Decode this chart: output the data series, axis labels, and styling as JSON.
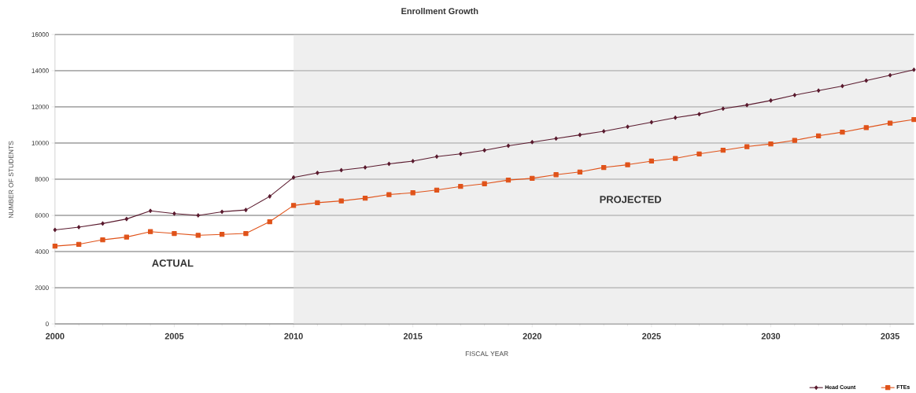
{
  "chart_data": {
    "type": "line",
    "title": "Enrollment Growth",
    "xlabel": "FISCAL YEAR",
    "ylabel": "NUMBER OF STUDENTS",
    "x": [
      2000,
      2001,
      2002,
      2003,
      2004,
      2005,
      2006,
      2007,
      2008,
      2009,
      2010,
      2011,
      2012,
      2013,
      2014,
      2015,
      2016,
      2017,
      2018,
      2019,
      2020,
      2021,
      2022,
      2023,
      2024,
      2025,
      2026,
      2027,
      2028,
      2029,
      2030,
      2031,
      2032,
      2033,
      2034,
      2035,
      2036
    ],
    "series": [
      {
        "name": "Head Count",
        "color": "#5a1a2e",
        "marker": "diamond",
        "values": [
          5200,
          5350,
          5550,
          5800,
          6250,
          6100,
          6000,
          6200,
          6300,
          7050,
          8100,
          8350,
          8500,
          8650,
          8850,
          9000,
          9250,
          9400,
          9600,
          9850,
          10050,
          10250,
          10450,
          10650,
          10900,
          11150,
          11400,
          11600,
          11900,
          12100,
          12350,
          12650,
          12900,
          13150,
          13450,
          13750,
          14050
        ]
      },
      {
        "name": "FTEs",
        "color": "#e0531a",
        "marker": "square",
        "values": [
          4300,
          4400,
          4650,
          4800,
          5100,
          5000,
          4900,
          4950,
          5000,
          5650,
          6550,
          6700,
          6800,
          6950,
          7150,
          7250,
          7400,
          7600,
          7750,
          7950,
          8050,
          8250,
          8400,
          8650,
          8800,
          9000,
          9150,
          9400,
          9600,
          9800,
          9950,
          10150,
          10400,
          10600,
          10850,
          11100,
          11300
        ]
      }
    ],
    "xlim": [
      2000,
      2036
    ],
    "ylim": [
      0,
      16000
    ],
    "xticks": [
      2000,
      2005,
      2010,
      2015,
      2020,
      2025,
      2030,
      2035
    ],
    "yticks": [
      0,
      2000,
      4000,
      6000,
      8000,
      10000,
      12000,
      14000,
      16000
    ],
    "bands": [
      {
        "axis": "x",
        "from": 2010,
        "to": 2036,
        "color": "#efefef"
      }
    ],
    "annotations": [
      "ACTUAL",
      "PROJECTED"
    ],
    "grid": "y",
    "legend": "bottom right",
    "line_style": "solid"
  }
}
